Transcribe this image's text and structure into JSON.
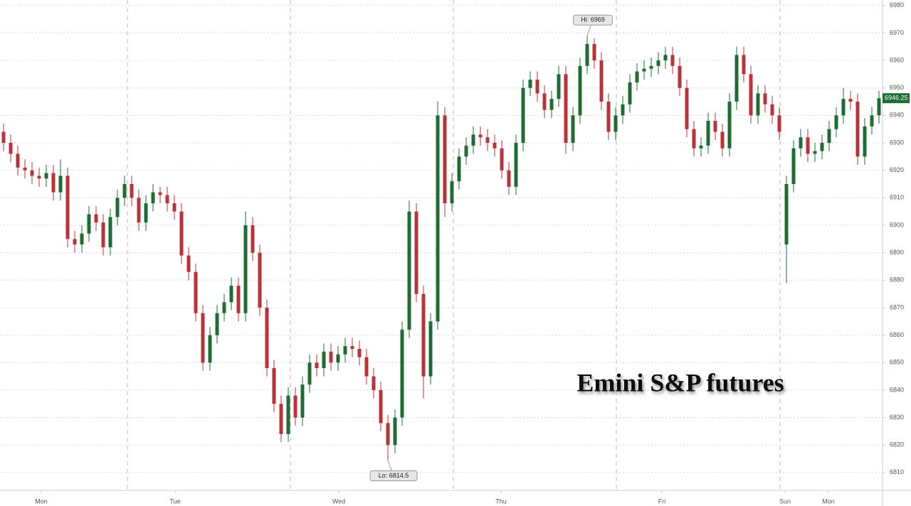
{
  "chart_data": {
    "type": "candlestick",
    "title": "Emini S&P futures",
    "up_color": "#1f6b34",
    "down_color": "#b8323a",
    "xlim": [
      -0.5,
      123.5
    ],
    "xticks": [
      {
        "value": 5.3,
        "label": "Mon"
      },
      {
        "value": 24.1,
        "label": "Tue"
      },
      {
        "value": 47.1,
        "label": "Wed"
      },
      {
        "value": 69.9,
        "label": "Thu"
      },
      {
        "value": 92.5,
        "label": "Fri"
      },
      {
        "value": 109.8,
        "label": "Sun"
      },
      {
        "value": 115.9,
        "label": "Mon"
      }
    ],
    "ylim": [
      6803.5,
      6982
    ],
    "yticks": [
      6810,
      6820,
      6830,
      6840,
      6850,
      6860,
      6870,
      6880,
      6890,
      6900,
      6910,
      6920,
      6930,
      6940,
      6950,
      6960,
      6970,
      6980
    ],
    "grid": true,
    "open": [
      6934,
      6930,
      6926,
      6921,
      6920,
      6918,
      6917,
      6919,
      6912,
      6918,
      6895,
      6893,
      6897,
      6904,
      6901,
      6892,
      6903,
      6910,
      6915,
      6910,
      6901,
      6908,
      6912,
      6911,
      6908,
      6905,
      6889,
      6883,
      6868,
      6850,
      6860,
      6868,
      6872,
      6878,
      6868,
      6900,
      6890,
      6870,
      6848,
      6835,
      6824,
      6838,
      6830,
      6842,
      6850,
      6848,
      6854,
      6850,
      6853,
      6856,
      6855,
      6852,
      6845,
      6840,
      6828,
      6820,
      6830,
      6862,
      6905,
      6875,
      6845,
      6865,
      6940,
      6908,
      6916,
      6925,
      6929,
      6933,
      6932,
      6930,
      6928,
      6920,
      6914,
      6930,
      6950,
      6953,
      6948,
      6942,
      6946,
      6955,
      6930,
      6940,
      6958,
      6966,
      6960,
      6945,
      6934,
      6940,
      6944,
      6952,
      6956,
      6957,
      6958,
      6960,
      6962,
      6958,
      6950,
      6935,
      6928,
      6929,
      6938,
      6934,
      6928,
      6945,
      6962,
      6955,
      6940,
      6948,
      6944,
      6940,
      6893,
      6915,
      6928,
      6932,
      6926,
      6927,
      6930,
      6935,
      6940,
      6946,
      6945,
      6925,
      6936,
      6940
    ],
    "high": [
      6937,
      6933,
      6929,
      6924,
      6923,
      6921,
      6922,
      6922,
      6924,
      6921,
      6898,
      6900,
      6907,
      6907,
      6904,
      6906,
      6913,
      6918,
      6918,
      6913,
      6911,
      6915,
      6914,
      6914,
      6911,
      6908,
      6892,
      6886,
      6871,
      6863,
      6871,
      6875,
      6881,
      6881,
      6905,
      6903,
      6893,
      6873,
      6851,
      6838,
      6841,
      6841,
      6845,
      6853,
      6853,
      6857,
      6857,
      6856,
      6859,
      6859,
      6858,
      6855,
      6848,
      6843,
      6831,
      6833,
      6865,
      6909,
      6908,
      6878,
      6868,
      6945,
      6943,
      6919,
      6928,
      6932,
      6936,
      6936,
      6935,
      6933,
      6931,
      6923,
      6933,
      6953,
      6956,
      6956,
      6951,
      6949,
      6958,
      6958,
      6943,
      6961,
      6969,
      6968,
      6963,
      6948,
      6943,
      6947,
      6955,
      6959,
      6960,
      6961,
      6963,
      6965,
      6965,
      6961,
      6953,
      6938,
      6932,
      6941,
      6941,
      6937,
      6948,
      6965,
      6965,
      6958,
      6951,
      6951,
      6947,
      6943,
      6918,
      6931,
      6935,
      6935,
      6930,
      6933,
      6938,
      6943,
      6950,
      6949,
      6948,
      6939,
      6943,
      6949
    ],
    "low": [
      6927,
      6923,
      6918,
      6917,
      6915,
      6914,
      6914,
      6909,
      6909,
      6892,
      6890,
      6890,
      6894,
      6898,
      6889,
      6889,
      6900,
      6907,
      6907,
      6898,
      6898,
      6905,
      6908,
      6905,
      6902,
      6886,
      6880,
      6865,
      6847,
      6847,
      6857,
      6865,
      6869,
      6865,
      6865,
      6887,
      6867,
      6845,
      6832,
      6821,
      6821,
      6827,
      6827,
      6839,
      6845,
      6845,
      6847,
      6847,
      6850,
      6852,
      6849,
      6842,
      6837,
      6825,
      6814.5,
      6817,
      6827,
      6859,
      6872,
      6837,
      6842,
      6862,
      6903,
      6905,
      6913,
      6922,
      6926,
      6929,
      6927,
      6925,
      6917,
      6911,
      6911,
      6927,
      6947,
      6945,
      6939,
      6939,
      6943,
      6926,
      6927,
      6937,
      6955,
      6957,
      6942,
      6931,
      6931,
      6937,
      6941,
      6949,
      6953,
      6954,
      6955,
      6957,
      6955,
      6947,
      6932,
      6925,
      6925,
      6926,
      6931,
      6925,
      6925,
      6942,
      6952,
      6937,
      6937,
      6941,
      6937,
      6931,
      6879,
      6912,
      6925,
      6923,
      6923,
      6924,
      6927,
      6932,
      6937,
      6942,
      6922,
      6922,
      6933,
      6937
    ],
    "close": [
      6930,
      6926,
      6921,
      6920,
      6918,
      6917,
      6919,
      6912,
      6918,
      6895,
      6893,
      6897,
      6904,
      6901,
      6892,
      6903,
      6910,
      6915,
      6910,
      6901,
      6908,
      6912,
      6911,
      6908,
      6905,
      6889,
      6883,
      6868,
      6850,
      6860,
      6868,
      6872,
      6878,
      6868,
      6900,
      6890,
      6870,
      6848,
      6835,
      6824,
      6838,
      6830,
      6842,
      6850,
      6848,
      6854,
      6850,
      6853,
      6856,
      6855,
      6852,
      6845,
      6840,
      6828,
      6820,
      6830,
      6862,
      6905,
      6875,
      6845,
      6865,
      6940,
      6908,
      6916,
      6925,
      6929,
      6933,
      6932,
      6930,
      6928,
      6920,
      6914,
      6930,
      6950,
      6953,
      6948,
      6942,
      6946,
      6955,
      6930,
      6940,
      6958,
      6966,
      6960,
      6945,
      6934,
      6940,
      6944,
      6952,
      6956,
      6957,
      6958,
      6960,
      6962,
      6958,
      6950,
      6935,
      6928,
      6929,
      6938,
      6934,
      6928,
      6945,
      6962,
      6955,
      6940,
      6948,
      6944,
      6940,
      6934,
      6915,
      6928,
      6932,
      6926,
      6927,
      6930,
      6935,
      6940,
      6946,
      6945,
      6925,
      6936,
      6940,
      6946.25
    ],
    "annotations": [
      {
        "label": "Hi: 6969",
        "x": 82,
        "y": 6969,
        "side": "above"
      },
      {
        "label": "Lo: 6814.5",
        "x": 54,
        "y": 6814.5,
        "side": "below"
      }
    ],
    "last_price": {
      "value": 6946.25,
      "label": "6946.25"
    }
  }
}
